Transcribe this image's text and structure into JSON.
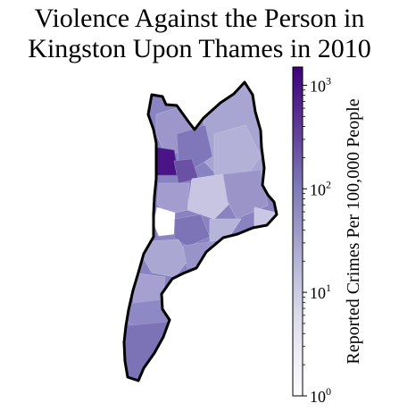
{
  "figure": {
    "title_line1": "Violence Against the Person in",
    "title_line2": "Kingston Upon Thames in 2010"
  },
  "chart_data": {
    "type": "choropleth",
    "title": "Violence Against the Person in Kingston Upon Thames in 2010",
    "region": "Kingston Upon Thames",
    "year": 2010,
    "colorbar": {
      "label": "Reported Crimes Per 100,000 People",
      "scale": "log",
      "range": [
        1,
        1500
      ],
      "major_ticks": [
        {
          "value": 1,
          "label_base": "10",
          "label_exp": "0"
        },
        {
          "value": 10,
          "label_base": "10",
          "label_exp": "1"
        },
        {
          "value": 100,
          "label_base": "10",
          "label_exp": "2"
        },
        {
          "value": 1000,
          "label_base": "10",
          "label_exp": "3"
        }
      ],
      "colormap": "Purples",
      "colors": [
        "#fcfbfd",
        "#efedf5",
        "#dadaeb",
        "#bcbddc",
        "#9e9ac8",
        "#807dba",
        "#6a51a3",
        "#54278f",
        "#3f007d"
      ]
    }
  }
}
